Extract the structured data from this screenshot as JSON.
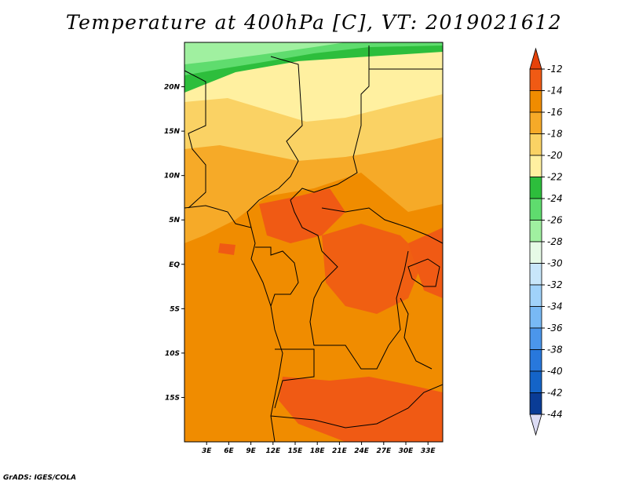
{
  "title": "Temperature at 400hPa [C], VT: 2019021612",
  "credit": "GrADS: IGES/COLA",
  "map": {
    "lat_labels": [
      "20N",
      "15N",
      "10N",
      "5N",
      "EQ",
      "5S",
      "10S",
      "15S"
    ],
    "lat_values": [
      20,
      15,
      10,
      5,
      0,
      -5,
      -10,
      -15
    ],
    "lon_labels": [
      "3E",
      "6E",
      "9E",
      "12E",
      "15E",
      "18E",
      "21E",
      "24E",
      "27E",
      "30E",
      "33E"
    ],
    "lon_values": [
      3,
      6,
      9,
      12,
      15,
      18,
      21,
      24,
      27,
      30,
      33
    ],
    "lon_range": [
      0,
      35
    ],
    "lat_range": [
      -20,
      25
    ]
  },
  "colorbar": {
    "labels": [
      "-12",
      "-14",
      "-16",
      "-18",
      "-20",
      "-22",
      "-24",
      "-26",
      "-28",
      "-30",
      "-32",
      "-34",
      "-36",
      "-38",
      "-40",
      "-42",
      "-44"
    ],
    "colors": [
      "#f05a14",
      "#f08c00",
      "#f6aa28",
      "#fad264",
      "#fff0a0",
      "#2dbe3c",
      "#5fdc6e",
      "#a0f0a0",
      "#e6fae6",
      "#c8e6fa",
      "#a0d2fa",
      "#78b9f5",
      "#4b96eb",
      "#2878dc",
      "#1464c8",
      "#0a3c96",
      "#000a64"
    ],
    "top_color": "#e6420a",
    "bottom_color": "#dcdcf5"
  }
}
